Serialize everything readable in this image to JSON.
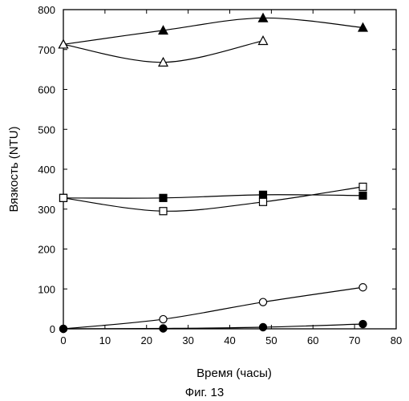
{
  "chart_data": {
    "type": "line",
    "title": "",
    "xlabel": "Время (часы)",
    "ylabel": "Вязкость (NTU)",
    "caption": "Фиг. 13",
    "xlim": [
      0,
      80
    ],
    "ylim": [
      0,
      800
    ],
    "xticks": [
      "0",
      "10",
      "20",
      "30",
      "40",
      "50",
      "60",
      "70",
      "80"
    ],
    "yticks": [
      "0",
      "100",
      "200",
      "300",
      "400",
      "500",
      "600",
      "700",
      "800"
    ],
    "grid": false,
    "legend": "none",
    "series": [
      {
        "marker": "triangle-filled",
        "x": [
          0,
          24,
          48,
          72
        ],
        "y": [
          713,
          748,
          779,
          755
        ]
      },
      {
        "marker": "triangle-open",
        "x": [
          0,
          24,
          48
        ],
        "y": [
          713,
          668,
          722
        ]
      },
      {
        "marker": "square-filled",
        "x": [
          0,
          24,
          48,
          72
        ],
        "y": [
          328,
          328,
          336,
          334
        ]
      },
      {
        "marker": "square-open",
        "x": [
          0,
          24,
          48,
          72
        ],
        "y": [
          328,
          295,
          318,
          356
        ]
      },
      {
        "marker": "circle-open",
        "x": [
          0,
          24,
          48,
          72
        ],
        "y": [
          0,
          24,
          67,
          104
        ]
      },
      {
        "marker": "circle-filled",
        "x": [
          0,
          24,
          48,
          72
        ],
        "y": [
          0,
          1,
          4,
          12
        ]
      }
    ]
  }
}
